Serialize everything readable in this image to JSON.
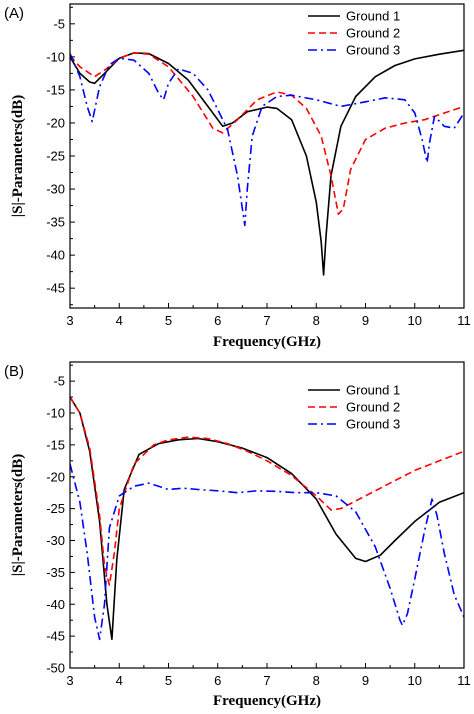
{
  "chart_data": [
    {
      "type": "line",
      "panel_label": "(A)",
      "xlabel": "Frequency(GHz)",
      "ylabel": "|S|-Parameters(dB)",
      "xlim": [
        3,
        11
      ],
      "ylim": [
        -48,
        -2
      ],
      "xticks": [
        3,
        4,
        5,
        6,
        7,
        8,
        9,
        10,
        11
      ],
      "yticks": [
        -5,
        -10,
        -15,
        -20,
        -25,
        -30,
        -35,
        -40,
        -45
      ],
      "legend_position": "top-right",
      "series": [
        {
          "name": "Ground 1",
          "color": "#000000",
          "dash": "solid",
          "x": [
            3.0,
            3.2,
            3.4,
            3.5,
            3.7,
            4.0,
            4.3,
            4.6,
            5.0,
            5.4,
            5.8,
            6.1,
            6.3,
            6.6,
            7.0,
            7.2,
            7.5,
            7.8,
            8.0,
            8.1,
            8.15,
            8.2,
            8.3,
            8.5,
            8.8,
            9.2,
            9.6,
            10.0,
            10.5,
            11.0
          ],
          "y": [
            -10.0,
            -12.5,
            -13.8,
            -14.0,
            -12.5,
            -10.2,
            -9.4,
            -9.5,
            -11.0,
            -13.5,
            -17.5,
            -20.5,
            -20.0,
            -18.3,
            -17.6,
            -17.8,
            -19.5,
            -25.0,
            -32.0,
            -38.0,
            -43.0,
            -37.0,
            -28.0,
            -20.5,
            -16.0,
            -13.0,
            -11.3,
            -10.3,
            -9.6,
            -9.0
          ]
        },
        {
          "name": "Ground 2",
          "color": "#ff0000",
          "dash": "dashed",
          "x": [
            3.0,
            3.2,
            3.5,
            3.8,
            4.0,
            4.3,
            4.6,
            5.0,
            5.5,
            5.9,
            6.1,
            6.4,
            6.8,
            7.2,
            7.5,
            7.8,
            8.1,
            8.3,
            8.45,
            8.55,
            8.7,
            9.0,
            9.4,
            9.8,
            10.2,
            10.6,
            11.0
          ],
          "y": [
            -9.8,
            -11.5,
            -13.0,
            -11.5,
            -10.2,
            -9.4,
            -9.6,
            -11.5,
            -16.0,
            -20.8,
            -21.5,
            -19.5,
            -16.5,
            -15.3,
            -15.8,
            -17.8,
            -22.0,
            -28.0,
            -33.8,
            -33.0,
            -27.0,
            -22.5,
            -20.8,
            -20.0,
            -19.5,
            -18.5,
            -17.5
          ]
        },
        {
          "name": "Ground 3",
          "color": "#0000ff",
          "dash": "dashdot",
          "x": [
            3.0,
            3.2,
            3.35,
            3.45,
            3.6,
            3.8,
            4.0,
            4.3,
            4.6,
            4.8,
            4.9,
            5.0,
            5.2,
            5.5,
            5.8,
            6.0,
            6.2,
            6.4,
            6.5,
            6.55,
            6.6,
            6.7,
            6.9,
            7.2,
            7.5,
            8.0,
            8.5,
            9.0,
            9.4,
            9.8,
            10.0,
            10.15,
            10.25,
            10.3,
            10.4,
            10.6,
            10.8,
            11.0
          ],
          "y": [
            -9.5,
            -13.0,
            -17.5,
            -19.8,
            -14.5,
            -11.2,
            -10.2,
            -10.5,
            -12.5,
            -15.5,
            -16.5,
            -14.0,
            -11.8,
            -12.5,
            -15.0,
            -18.0,
            -21.0,
            -28.0,
            -33.0,
            -35.5,
            -30.0,
            -22.0,
            -17.5,
            -16.0,
            -15.8,
            -16.5,
            -17.5,
            -16.8,
            -16.2,
            -16.5,
            -18.5,
            -22.5,
            -26.0,
            -23.0,
            -19.0,
            -20.5,
            -20.8,
            -18.5
          ]
        }
      ]
    },
    {
      "type": "line",
      "panel_label": "(B)",
      "xlabel": "Frequency(GHz)",
      "ylabel": "|S|-Parameters(dB)",
      "xlim": [
        3,
        11
      ],
      "ylim": [
        -50,
        -2
      ],
      "xticks": [
        3,
        4,
        5,
        6,
        7,
        8,
        9,
        10,
        11
      ],
      "yticks": [
        -5,
        -10,
        -15,
        -20,
        -25,
        -30,
        -35,
        -40,
        -45,
        -50
      ],
      "legend_position": "top-right",
      "series": [
        {
          "name": "Ground 1",
          "color": "#000000",
          "dash": "solid",
          "x": [
            3.0,
            3.2,
            3.4,
            3.6,
            3.75,
            3.85,
            3.95,
            4.1,
            4.4,
            4.8,
            5.2,
            5.6,
            6.0,
            6.5,
            7.0,
            7.5,
            8.0,
            8.4,
            8.8,
            9.0,
            9.3,
            9.6,
            10.0,
            10.5,
            11.0
          ],
          "y": [
            -7.5,
            -10.0,
            -16.0,
            -27.0,
            -40.0,
            -45.5,
            -33.0,
            -22.0,
            -16.5,
            -14.8,
            -14.2,
            -14.0,
            -14.5,
            -15.5,
            -17.0,
            -19.5,
            -23.5,
            -29.0,
            -32.8,
            -33.3,
            -32.3,
            -30.0,
            -27.0,
            -24.0,
            -22.5
          ]
        },
        {
          "name": "Ground 2",
          "color": "#ff0000",
          "dash": "dashed",
          "x": [
            3.0,
            3.2,
            3.4,
            3.6,
            3.7,
            3.8,
            3.9,
            4.0,
            4.3,
            4.7,
            5.0,
            5.4,
            5.8,
            6.2,
            6.6,
            7.0,
            7.5,
            8.0,
            8.3,
            8.5,
            8.7,
            9.0,
            9.5,
            10.0,
            10.5,
            11.0
          ],
          "y": [
            -7.5,
            -10.0,
            -15.5,
            -26.0,
            -34.0,
            -37.0,
            -32.0,
            -25.0,
            -18.0,
            -15.0,
            -14.2,
            -13.8,
            -14.0,
            -14.8,
            -16.0,
            -17.5,
            -19.8,
            -23.0,
            -25.2,
            -25.0,
            -24.2,
            -23.0,
            -21.0,
            -19.0,
            -17.5,
            -16.0
          ]
        },
        {
          "name": "Ground 3",
          "color": "#0000ff",
          "dash": "dashdot",
          "x": [
            3.0,
            3.2,
            3.35,
            3.5,
            3.6,
            3.7,
            3.8,
            4.0,
            4.3,
            4.6,
            4.8,
            5.0,
            5.3,
            5.6,
            6.0,
            6.4,
            6.8,
            7.2,
            7.6,
            8.0,
            8.4,
            8.8,
            9.2,
            9.5,
            9.7,
            9.75,
            9.85,
            10.0,
            10.2,
            10.35,
            10.45,
            10.6,
            10.8,
            11.0
          ],
          "y": [
            -18.0,
            -24.0,
            -32.0,
            -42.0,
            -45.5,
            -40.0,
            -28.0,
            -23.0,
            -21.5,
            -21.0,
            -21.5,
            -22.0,
            -21.8,
            -22.0,
            -22.2,
            -22.5,
            -22.2,
            -22.3,
            -22.5,
            -22.5,
            -23.0,
            -25.5,
            -31.0,
            -37.5,
            -42.5,
            -43.3,
            -41.5,
            -36.0,
            -28.5,
            -23.5,
            -26.0,
            -32.0,
            -38.5,
            -42.0
          ]
        }
      ]
    }
  ]
}
